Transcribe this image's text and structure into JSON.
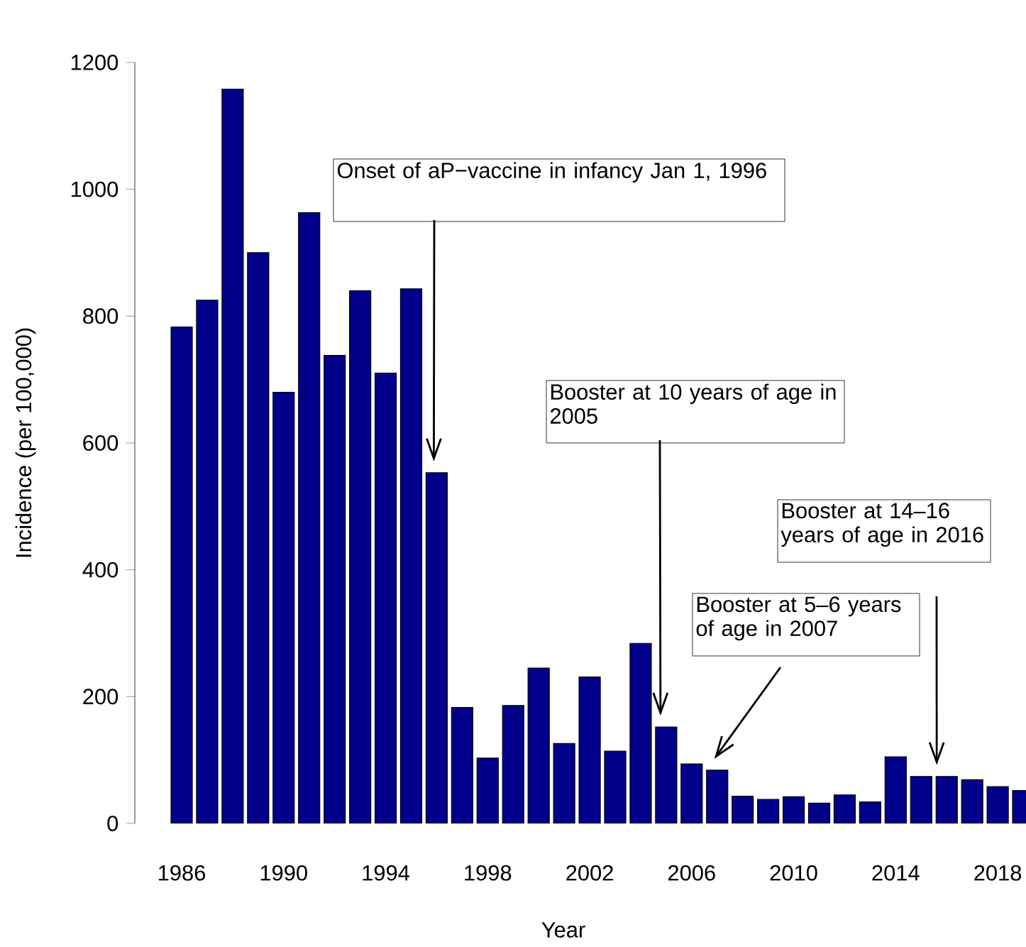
{
  "chart_data": {
    "type": "bar",
    "xlabel": "Year",
    "ylabel": "Incidence (per 100,000)",
    "categories": [
      "1986",
      null,
      null,
      null,
      "1990",
      null,
      null,
      null,
      "1994",
      null,
      null,
      null,
      "1998",
      null,
      null,
      null,
      "2002",
      null,
      null,
      null,
      "2006",
      null,
      null,
      null,
      "2010",
      null,
      null,
      null,
      "2014",
      null,
      null,
      null,
      "2018",
      null
    ],
    "values": [
      783,
      825,
      1158,
      900,
      680,
      963,
      738,
      840,
      710,
      843,
      553,
      183,
      103,
      186,
      245,
      126,
      231,
      114,
      284,
      152,
      94,
      84,
      43,
      38,
      42,
      32,
      45,
      34,
      105,
      74,
      74,
      69,
      58,
      52
    ],
    "color": "#00008b",
    "ylim": [
      0,
      1200
    ],
    "yticks": [
      0,
      200,
      400,
      600,
      800,
      1000,
      1200
    ],
    "annotations": [
      "Onset of aP−vaccine in infancy Jan 1, 1996",
      "Booster at 10 years of age in 2005",
      "Booster at 5–6 years of age in 2007",
      "Booster at 14–16 years of age in 2016"
    ]
  }
}
